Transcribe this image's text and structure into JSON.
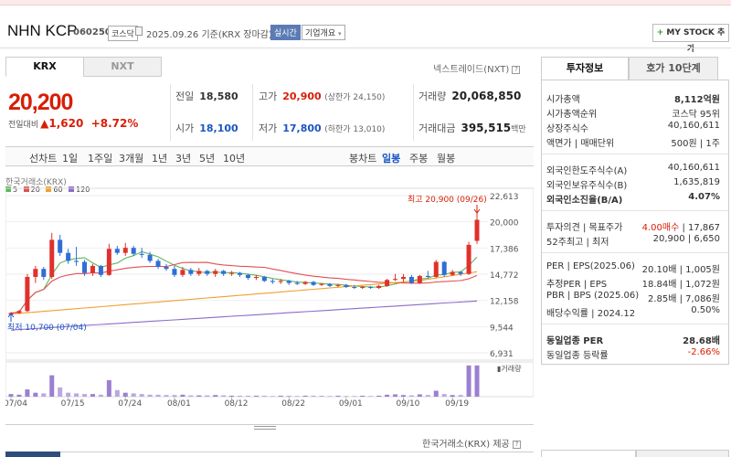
{
  "header": {
    "name": "NHN KCP",
    "code": "060250",
    "market_badge": "코스닥",
    "date": "2025.09.26",
    "date_suffix": "기준(KRX 장마감)",
    "realtime": "실시간",
    "corp_info": "기업개요",
    "mystock": "MY STOCK 추가"
  },
  "market_tabs": [
    "KRX",
    "NXT"
  ],
  "nextrade": "넥스트레이드(NXT)",
  "quote": {
    "price": "20,200",
    "change_label": "전일대비",
    "change": "1,620",
    "change_pct": "+8.72%",
    "prev_close_label": "전일",
    "prev_close": "18,580",
    "open_label": "시가",
    "open": "18,100",
    "high_label": "고가",
    "high": "20,900",
    "high_limit": "(상한가 24,150)",
    "low_label": "저가",
    "low": "17,800",
    "low_limit": "(하한가 13,010)",
    "volume_label": "거래량",
    "volume": "20,068,850",
    "amount_label": "거래대금",
    "amount": "395,515",
    "amount_unit": "백만"
  },
  "period_tabs": {
    "left": [
      "선차트",
      "1일",
      "1주일",
      "3개월",
      "1년",
      "3년",
      "5년",
      "10년"
    ],
    "right": [
      "봉차트",
      "일봉",
      "주봉",
      "월봉"
    ],
    "selected": "일봉"
  },
  "chart": {
    "exchange_label": "한국거래소(KRX)",
    "legend": [
      {
        "label": "5",
        "color": "#5cb85c"
      },
      {
        "label": "20",
        "color": "#e05050"
      },
      {
        "label": "60",
        "color": "#f0a030"
      },
      {
        "label": "120",
        "color": "#8a6cc8"
      }
    ],
    "high_note": "최고 20,900 (09/26)",
    "low_note": "최저 10,700 (07/04)",
    "y_ticks": [
      "22,613",
      "20,000",
      "17,386",
      "14,772",
      "12,158",
      "9,544",
      "6,931"
    ],
    "volume_label": "거래량",
    "x_ticks": [
      "07/04",
      "07/15",
      "07/24",
      "08/01",
      "08/12",
      "08/22",
      "09/01",
      "09/10",
      "09/19"
    ],
    "up_color": "#e0312c",
    "down_color": "#2f6ed6"
  },
  "chart_data": {
    "type": "candlestick",
    "ylim": [
      6931,
      22613
    ],
    "candles": [
      {
        "o": 10750,
        "h": 11000,
        "l": 10700,
        "c": 10900
      },
      {
        "o": 10900,
        "h": 11200,
        "l": 10800,
        "c": 11100
      },
      {
        "o": 11100,
        "h": 14800,
        "l": 11000,
        "c": 14500
      },
      {
        "o": 14500,
        "h": 15600,
        "l": 13900,
        "c": 15300
      },
      {
        "o": 15300,
        "h": 15500,
        "l": 14200,
        "c": 14500
      },
      {
        "o": 14500,
        "h": 18900,
        "l": 14300,
        "c": 18200
      },
      {
        "o": 18200,
        "h": 18700,
        "l": 16600,
        "c": 16900
      },
      {
        "o": 16900,
        "h": 17300,
        "l": 15800,
        "c": 16100
      },
      {
        "o": 16100,
        "h": 17500,
        "l": 15600,
        "c": 16000
      },
      {
        "o": 16000,
        "h": 16200,
        "l": 14600,
        "c": 14900
      },
      {
        "o": 14900,
        "h": 15800,
        "l": 14600,
        "c": 15600
      },
      {
        "o": 15600,
        "h": 15700,
        "l": 14500,
        "c": 14700
      },
      {
        "o": 14700,
        "h": 17800,
        "l": 14600,
        "c": 17300
      },
      {
        "o": 17300,
        "h": 17600,
        "l": 16700,
        "c": 16900
      },
      {
        "o": 16900,
        "h": 17900,
        "l": 16600,
        "c": 17400
      },
      {
        "o": 17400,
        "h": 17600,
        "l": 16600,
        "c": 16800
      },
      {
        "o": 16800,
        "h": 17400,
        "l": 16400,
        "c": 16700
      },
      {
        "o": 16700,
        "h": 17000,
        "l": 15900,
        "c": 16100
      },
      {
        "o": 16100,
        "h": 16300,
        "l": 15300,
        "c": 15500
      },
      {
        "o": 15500,
        "h": 15800,
        "l": 15100,
        "c": 15300
      },
      {
        "o": 15300,
        "h": 15600,
        "l": 14500,
        "c": 14700
      },
      {
        "o": 14700,
        "h": 15500,
        "l": 14500,
        "c": 15200
      },
      {
        "o": 15200,
        "h": 15400,
        "l": 14600,
        "c": 14800
      },
      {
        "o": 14800,
        "h": 15400,
        "l": 14600,
        "c": 15100
      },
      {
        "o": 15100,
        "h": 15200,
        "l": 14600,
        "c": 14800
      },
      {
        "o": 14800,
        "h": 15300,
        "l": 14500,
        "c": 15100
      },
      {
        "o": 15100,
        "h": 15200,
        "l": 14600,
        "c": 14800
      },
      {
        "o": 14800,
        "h": 15100,
        "l": 14600,
        "c": 14900
      },
      {
        "o": 14900,
        "h": 15000,
        "l": 14500,
        "c": 14700
      },
      {
        "o": 14700,
        "h": 14800,
        "l": 14200,
        "c": 14400
      },
      {
        "o": 14400,
        "h": 14700,
        "l": 14200,
        "c": 14500
      },
      {
        "o": 14500,
        "h": 14600,
        "l": 14000,
        "c": 14100
      },
      {
        "o": 14100,
        "h": 14300,
        "l": 13800,
        "c": 14000
      },
      {
        "o": 14000,
        "h": 14300,
        "l": 13800,
        "c": 14100
      },
      {
        "o": 14100,
        "h": 14200,
        "l": 13700,
        "c": 13900
      },
      {
        "o": 13900,
        "h": 14100,
        "l": 13700,
        "c": 13800
      },
      {
        "o": 13800,
        "h": 14100,
        "l": 13700,
        "c": 14000
      },
      {
        "o": 14000,
        "h": 14100,
        "l": 13600,
        "c": 13700
      },
      {
        "o": 13700,
        "h": 13900,
        "l": 13600,
        "c": 13800
      },
      {
        "o": 13800,
        "h": 13900,
        "l": 13500,
        "c": 13600
      },
      {
        "o": 13600,
        "h": 13800,
        "l": 13500,
        "c": 13700
      },
      {
        "o": 13700,
        "h": 13800,
        "l": 13400,
        "c": 13500
      },
      {
        "o": 13500,
        "h": 13700,
        "l": 13300,
        "c": 13400
      },
      {
        "o": 13400,
        "h": 13600,
        "l": 13300,
        "c": 13500
      },
      {
        "o": 13500,
        "h": 13600,
        "l": 13300,
        "c": 13400
      },
      {
        "o": 13400,
        "h": 13700,
        "l": 13300,
        "c": 13600
      },
      {
        "o": 13600,
        "h": 14300,
        "l": 13500,
        "c": 14200
      },
      {
        "o": 14200,
        "h": 14800,
        "l": 14100,
        "c": 14300
      },
      {
        "o": 14300,
        "h": 14800,
        "l": 14000,
        "c": 14500
      },
      {
        "o": 14500,
        "h": 14700,
        "l": 13800,
        "c": 13900
      },
      {
        "o": 13900,
        "h": 14700,
        "l": 13800,
        "c": 14600
      },
      {
        "o": 14600,
        "h": 15100,
        "l": 14400,
        "c": 14500
      },
      {
        "o": 14500,
        "h": 16200,
        "l": 14400,
        "c": 16000
      },
      {
        "o": 16000,
        "h": 16100,
        "l": 14500,
        "c": 14700
      },
      {
        "o": 14700,
        "h": 15200,
        "l": 14600,
        "c": 15000
      },
      {
        "o": 15000,
        "h": 15100,
        "l": 14600,
        "c": 14800
      },
      {
        "o": 14800,
        "h": 18000,
        "l": 14700,
        "c": 17700
      },
      {
        "o": 18100,
        "h": 20900,
        "l": 17800,
        "c": 20200
      }
    ],
    "volumes": [
      0.08,
      0.06,
      0.22,
      0.12,
      0.1,
      0.65,
      0.28,
      0.12,
      0.1,
      0.08,
      0.08,
      0.06,
      0.5,
      0.2,
      0.12,
      0.1,
      0.08,
      0.06,
      0.06,
      0.05,
      0.05,
      0.06,
      0.04,
      0.04,
      0.04,
      0.05,
      0.04,
      0.03,
      0.03,
      0.03,
      0.03,
      0.03,
      0.02,
      0.03,
      0.03,
      0.02,
      0.03,
      0.03,
      0.02,
      0.02,
      0.03,
      0.02,
      0.02,
      0.03,
      0.02,
      0.03,
      0.06,
      0.07,
      0.05,
      0.04,
      0.07,
      0.05,
      0.18,
      0.08,
      0.05,
      0.05,
      0.95,
      0.95
    ]
  },
  "provider": "한국거래소(KRX) 제공",
  "right_panel": {
    "tabs": [
      "투자정보",
      "호가 10단계"
    ],
    "rows": [
      {
        "l": "시가총액",
        "r": "8,112억원",
        "rbold": true
      },
      {
        "l": "시가총액순위",
        "r": "코스닥 95위"
      },
      {
        "l": "상장주식수",
        "r": "40,160,611"
      },
      {
        "l": "액면가 | 매매단위",
        "r": "500원 | 1주"
      },
      {
        "l": "외국인한도주식수(A)",
        "r": "40,160,611"
      },
      {
        "l": "외국인보유주식수(B)",
        "r": "1,635,819"
      },
      {
        "l": "외국인소진율(B/A)",
        "r": "4.07%",
        "bold": true
      },
      {
        "l": "투자의견 | 목표주가",
        "r_red": "4.00매수",
        "r": " | 17,867"
      },
      {
        "l": "52주최고 | 최저",
        "r": "20,900 | 6,650"
      },
      {
        "l": "PER | EPS(2025.06)",
        "r": "20.10배 | 1,005원"
      },
      {
        "l": "추정PER | EPS",
        "r": "18.84배 | 1,072원"
      },
      {
        "l": "PBR | BPS (2025.06)",
        "r": "2.85배 | 7,086원"
      },
      {
        "l": "배당수익률 | 2024.12",
        "r": "0.50%"
      },
      {
        "l": "동일업종 PER",
        "r": "28.68배",
        "bold": true
      },
      {
        "l": "동일업종 등락률",
        "r_red": "-2.66%"
      }
    ]
  }
}
